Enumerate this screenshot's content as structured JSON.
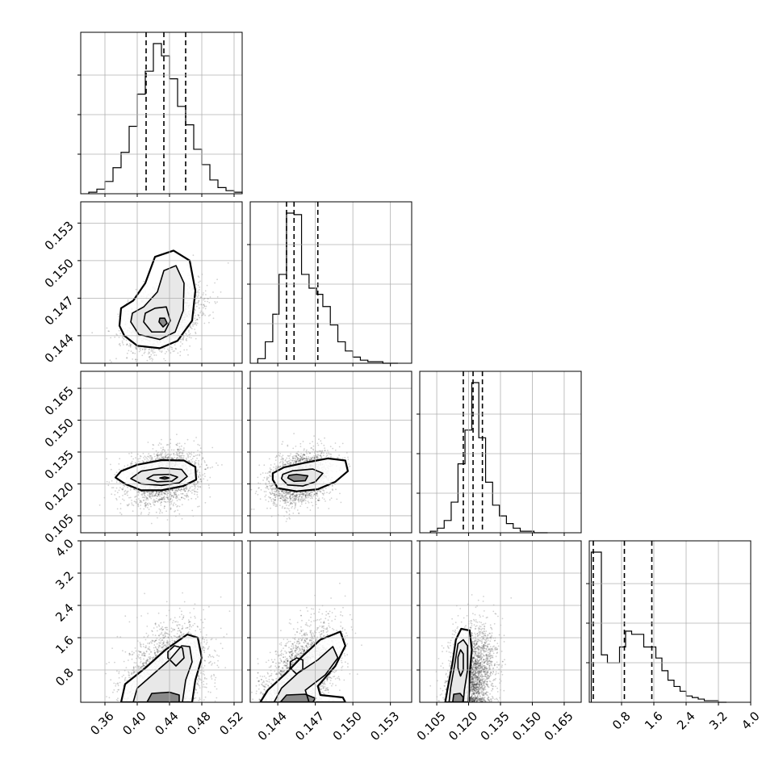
{
  "chart_data": {
    "type": "corner",
    "params": [
      {
        "range": [
          0.33,
          0.53
        ],
        "ticks": [
          0.36,
          0.4,
          0.44,
          0.48,
          0.52
        ],
        "tick_labels": [
          "0.36",
          "0.40",
          "0.44",
          "0.48",
          "0.52"
        ]
      },
      {
        "range": [
          0.1418,
          0.1547
        ],
        "ticks": [
          0.144,
          0.147,
          0.15,
          0.153
        ],
        "tick_labels": [
          "0.144",
          "0.147",
          "0.150",
          "0.153"
        ]
      },
      {
        "range": [
          0.097,
          0.173
        ],
        "ticks": [
          0.105,
          0.12,
          0.135,
          0.15,
          0.165
        ],
        "tick_labels": [
          "0.105",
          "0.120",
          "0.135",
          "0.150",
          "0.165"
        ]
      },
      {
        "range": [
          0.0,
          4.0
        ],
        "ticks": [
          0.8,
          1.6,
          2.4,
          3.2,
          4.0
        ],
        "tick_labels": [
          "0.8",
          "1.6",
          "2.4",
          "3.2",
          "4.0"
        ]
      }
    ],
    "histograms": [
      {
        "quantiles": [
          0.411,
          0.433,
          0.46
        ],
        "bins": [
          0.34,
          0.35,
          0.36,
          0.37,
          0.38,
          0.39,
          0.4,
          0.41,
          0.42,
          0.43,
          0.44,
          0.45,
          0.46,
          0.47,
          0.48,
          0.49,
          0.5,
          0.51,
          0.52
        ],
        "counts": [
          1,
          3,
          8,
          17,
          27,
          44,
          65,
          80,
          98,
          90,
          75,
          57,
          45,
          29,
          19,
          9,
          4,
          2,
          1
        ]
      },
      {
        "quantiles": [
          0.1447,
          0.1453,
          0.1472
        ],
        "bins": [
          0.1424,
          0.143,
          0.1436,
          0.1441,
          0.1447,
          0.1453,
          0.1459,
          0.1465,
          0.1471,
          0.1476,
          0.1482,
          0.1488,
          0.1494,
          0.15,
          0.1506,
          0.1512,
          0.1518,
          0.1524,
          0.153
        ],
        "counts": [
          3,
          14,
          32,
          58,
          98,
          97,
          58,
          49,
          45,
          37,
          25,
          14,
          8,
          4,
          2,
          1,
          1,
          0,
          0
        ]
      },
      {
        "quantiles": [
          0.1175,
          0.1221,
          0.1265
        ],
        "bins": [
          0.102,
          0.1053,
          0.1085,
          0.1118,
          0.115,
          0.1183,
          0.1215,
          0.1248,
          0.128,
          0.1313,
          0.1345,
          0.1378,
          0.141,
          0.1443,
          0.1475,
          0.1508,
          0.154
        ],
        "counts": [
          1,
          3,
          8,
          20,
          45,
          67,
          98,
          62,
          33,
          18,
          11,
          6,
          3,
          1,
          1,
          0,
          0
        ]
      },
      {
        "quantiles": [
          0.1,
          0.87,
          1.55
        ],
        "bins": [
          0.05,
          0.15,
          0.3,
          0.45,
          0.6,
          0.75,
          0.9,
          1.05,
          1.2,
          1.35,
          1.5,
          1.65,
          1.8,
          1.95,
          2.1,
          2.25,
          2.4,
          2.55,
          2.7,
          2.85,
          3.0,
          3.2
        ],
        "counts": [
          95,
          95,
          30,
          25,
          25,
          35,
          45,
          43,
          43,
          35,
          35,
          28,
          20,
          14,
          10,
          7,
          4,
          3,
          2,
          1,
          1,
          0
        ]
      }
    ],
    "joint": [
      {
        "row": 1,
        "col": 0,
        "mean": [
          0.433,
          0.1455
        ],
        "sd": [
          0.022,
          0.0013
        ],
        "rho": 0.35,
        "contours": [
          [
            [
              0.378,
              0.1448
            ],
            [
              0.384,
              0.144
            ],
            [
              0.4,
              0.1432
            ],
            [
              0.428,
              0.143
            ],
            [
              0.45,
              0.1436
            ],
            [
              0.468,
              0.1452
            ],
            [
              0.472,
              0.1476
            ],
            [
              0.465,
              0.15
            ],
            [
              0.445,
              0.1508
            ],
            [
              0.422,
              0.1503
            ],
            [
              0.41,
              0.1482
            ],
            [
              0.395,
              0.1468
            ],
            [
              0.38,
              0.1462
            ]
          ],
          [
            [
              0.392,
              0.1451
            ],
            [
              0.402,
              0.1441
            ],
            [
              0.428,
              0.1437
            ],
            [
              0.447,
              0.1443
            ],
            [
              0.457,
              0.146
            ],
            [
              0.458,
              0.1482
            ],
            [
              0.448,
              0.1496
            ],
            [
              0.433,
              0.1492
            ],
            [
              0.425,
              0.1475
            ],
            [
              0.408,
              0.1463
            ],
            [
              0.394,
              0.1458
            ]
          ],
          [
            [
              0.408,
              0.1451
            ],
            [
              0.418,
              0.1443
            ],
            [
              0.434,
              0.1443
            ],
            [
              0.441,
              0.1452
            ],
            [
              0.436,
              0.1463
            ],
            [
              0.422,
              0.1462
            ],
            [
              0.41,
              0.1458
            ]
          ],
          [
            [
              0.427,
              0.1451
            ],
            [
              0.432,
              0.1447
            ],
            [
              0.437,
              0.145
            ],
            [
              0.434,
              0.1454
            ],
            [
              0.428,
              0.1454
            ]
          ]
        ]
      },
      {
        "row": 2,
        "col": 0,
        "mean": [
          0.433,
          0.123
        ],
        "sd": [
          0.022,
          0.006
        ],
        "rho": 0.2,
        "contours": [
          [
            [
              0.373,
              0.123
            ],
            [
              0.385,
              0.12
            ],
            [
              0.405,
              0.117
            ],
            [
              0.43,
              0.117
            ],
            [
              0.457,
              0.119
            ],
            [
              0.473,
              0.122
            ],
            [
              0.472,
              0.128
            ],
            [
              0.458,
              0.131
            ],
            [
              0.43,
              0.1312
            ],
            [
              0.4,
              0.129
            ],
            [
              0.38,
              0.126
            ]
          ],
          [
            [
              0.392,
              0.1225
            ],
            [
              0.405,
              0.12
            ],
            [
              0.43,
              0.1193
            ],
            [
              0.452,
              0.1205
            ],
            [
              0.462,
              0.1235
            ],
            [
              0.455,
              0.1268
            ],
            [
              0.43,
              0.1275
            ],
            [
              0.405,
              0.126
            ]
          ],
          [
            [
              0.412,
              0.1225
            ],
            [
              0.425,
              0.121
            ],
            [
              0.443,
              0.1213
            ],
            [
              0.45,
              0.1232
            ],
            [
              0.44,
              0.1245
            ],
            [
              0.42,
              0.1242
            ]
          ],
          [
            [
              0.428,
              0.1228
            ],
            [
              0.434,
              0.1223
            ],
            [
              0.44,
              0.1228
            ],
            [
              0.434,
              0.1233
            ]
          ]
        ]
      },
      {
        "row": 2,
        "col": 1,
        "mean": [
          0.1458,
          0.1228
        ],
        "sd": [
          0.0012,
          0.006
        ],
        "rho": 0.3,
        "contours": [
          [
            [
              0.1436,
              0.122
            ],
            [
              0.144,
              0.118
            ],
            [
              0.1455,
              0.1165
            ],
            [
              0.1472,
              0.1175
            ],
            [
              0.1486,
              0.121
            ],
            [
              0.1496,
              0.126
            ],
            [
              0.1494,
              0.131
            ],
            [
              0.148,
              0.132
            ],
            [
              0.1462,
              0.13
            ],
            [
              0.1445,
              0.1278
            ],
            [
              0.1436,
              0.125
            ]
          ],
          [
            [
              0.1443,
              0.1225
            ],
            [
              0.1448,
              0.1195
            ],
            [
              0.146,
              0.119
            ],
            [
              0.147,
              0.121
            ],
            [
              0.1476,
              0.125
            ],
            [
              0.1468,
              0.127
            ],
            [
              0.1452,
              0.1262
            ],
            [
              0.1444,
              0.1245
            ]
          ],
          [
            [
              0.1448,
              0.1228
            ],
            [
              0.1453,
              0.1212
            ],
            [
              0.1462,
              0.1215
            ],
            [
              0.1464,
              0.1238
            ],
            [
              0.1455,
              0.1245
            ],
            [
              0.1449,
              0.124
            ]
          ]
        ]
      },
      {
        "row": 3,
        "col": 0,
        "mean": [
          0.437,
          0.9
        ],
        "sd": [
          0.024,
          0.6
        ],
        "rho": 0.3,
        "contours": [
          [
            [
              0.38,
              0.0
            ],
            [
              0.385,
              0.45
            ],
            [
              0.41,
              0.85
            ],
            [
              0.435,
              1.3
            ],
            [
              0.462,
              1.68
            ],
            [
              0.475,
              1.6
            ],
            [
              0.48,
              1.1
            ],
            [
              0.472,
              0.55
            ],
            [
              0.468,
              0.0
            ]
          ],
          [
            [
              0.395,
              0.0
            ],
            [
              0.4,
              0.35
            ],
            [
              0.42,
              0.7
            ],
            [
              0.44,
              1.05
            ],
            [
              0.455,
              1.4
            ],
            [
              0.465,
              1.38
            ],
            [
              0.468,
              1.0
            ],
            [
              0.46,
              0.55
            ],
            [
              0.456,
              0.0
            ]
          ],
          [
            [
              0.438,
              1.1
            ],
            [
              0.448,
              0.9
            ],
            [
              0.458,
              1.1
            ],
            [
              0.456,
              1.35
            ],
            [
              0.446,
              1.4
            ],
            [
              0.438,
              1.25
            ]
          ],
          [
            [
              0.412,
              0.0
            ],
            [
              0.418,
              0.22
            ],
            [
              0.44,
              0.25
            ],
            [
              0.452,
              0.18
            ],
            [
              0.452,
              0.0
            ]
          ]
        ]
      },
      {
        "row": 3,
        "col": 1,
        "mean": [
          0.146,
          0.85
        ],
        "sd": [
          0.0014,
          0.62
        ],
        "rho": 0.45,
        "contours": [
          [
            [
              0.1426,
              0.0
            ],
            [
              0.1432,
              0.3
            ],
            [
              0.1446,
              0.7
            ],
            [
              0.146,
              1.15
            ],
            [
              0.1474,
              1.55
            ],
            [
              0.149,
              1.75
            ],
            [
              0.1494,
              1.4
            ],
            [
              0.1486,
              0.9
            ],
            [
              0.1472,
              0.4
            ],
            [
              0.1474,
              0.18
            ],
            [
              0.1492,
              0.12
            ],
            [
              0.1494,
              0.0
            ]
          ],
          [
            [
              0.1437,
              0.0
            ],
            [
              0.1443,
              0.35
            ],
            [
              0.1456,
              0.72
            ],
            [
              0.1472,
              1.05
            ],
            [
              0.1484,
              1.38
            ],
            [
              0.1488,
              1.1
            ],
            [
              0.1478,
              0.68
            ],
            [
              0.1462,
              0.3
            ],
            [
              0.1465,
              0.0
            ]
          ],
          [
            [
              0.145,
              0.85
            ],
            [
              0.1455,
              0.7
            ],
            [
              0.146,
              0.82
            ],
            [
              0.146,
              1.05
            ],
            [
              0.1455,
              1.1
            ],
            [
              0.145,
              1.0
            ]
          ],
          [
            [
              0.1442,
              0.0
            ],
            [
              0.1447,
              0.18
            ],
            [
              0.1462,
              0.2
            ],
            [
              0.147,
              0.1
            ],
            [
              0.1468,
              0.0
            ]
          ]
        ]
      },
      {
        "row": 3,
        "col": 2,
        "mean": [
          0.1215,
          0.9
        ],
        "sd": [
          0.0055,
          0.6
        ],
        "rho": 0.25,
        "contours": [
          [
            [
              0.109,
              0.0
            ],
            [
              0.11,
              0.3
            ],
            [
              0.1125,
              1.0
            ],
            [
              0.114,
              1.55
            ],
            [
              0.1165,
              1.82
            ],
            [
              0.1205,
              1.78
            ],
            [
              0.1215,
              1.3
            ],
            [
              0.1205,
              0.7
            ],
            [
              0.12,
              0.0
            ]
          ],
          [
            [
              0.1108,
              0.0
            ],
            [
              0.1115,
              0.35
            ],
            [
              0.1135,
              0.95
            ],
            [
              0.115,
              1.45
            ],
            [
              0.1175,
              1.55
            ],
            [
              0.1195,
              1.4
            ],
            [
              0.1195,
              0.8
            ],
            [
              0.118,
              0.3
            ],
            [
              0.1175,
              0.0
            ]
          ],
          [
            [
              0.115,
              0.85
            ],
            [
              0.1162,
              0.65
            ],
            [
              0.1175,
              0.8
            ],
            [
              0.1175,
              1.2
            ],
            [
              0.1162,
              1.3
            ],
            [
              0.115,
              1.12
            ]
          ],
          [
            [
              0.1125,
              0.0
            ],
            [
              0.113,
              0.2
            ],
            [
              0.116,
              0.22
            ],
            [
              0.1175,
              0.12
            ],
            [
              0.1172,
              0.0
            ]
          ]
        ]
      }
    ]
  }
}
